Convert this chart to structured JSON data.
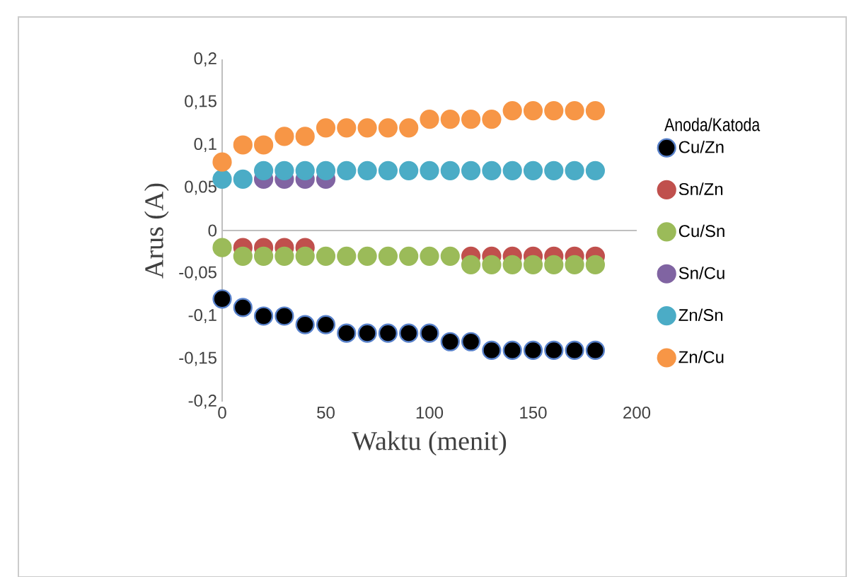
{
  "chart_data": {
    "type": "scatter",
    "xlabel": "Waktu (menit)",
    "ylabel": "Arus (A)",
    "legend_title": "Anoda/Katoda",
    "legend": "right",
    "marker": "circle",
    "x": [
      0,
      10,
      20,
      30,
      40,
      50,
      60,
      70,
      80,
      90,
      100,
      110,
      120,
      130,
      140,
      150,
      160,
      170,
      180
    ],
    "xlim": [
      0,
      200
    ],
    "xticks": [
      0,
      50,
      100,
      150,
      200
    ],
    "ylim": [
      -0.2,
      0.2
    ],
    "yticks": [
      {
        "value": -0.2,
        "label": "-0,2"
      },
      {
        "value": -0.15,
        "label": "-0,15"
      },
      {
        "value": -0.1,
        "label": "-0,1"
      },
      {
        "value": -0.05,
        "label": "-0,05"
      },
      {
        "value": 0,
        "label": "0"
      },
      {
        "value": 0.05,
        "label": "0,05"
      },
      {
        "value": 0.1,
        "label": "0,1"
      },
      {
        "value": 0.15,
        "label": "0,15"
      },
      {
        "value": 0.2,
        "label": "0,2"
      }
    ],
    "series": [
      {
        "name": "Cu/Zn",
        "color": "#000000",
        "values": [
          -0.08,
          -0.09,
          -0.1,
          -0.1,
          -0.11,
          -0.11,
          -0.12,
          -0.12,
          -0.12,
          -0.12,
          -0.12,
          -0.13,
          -0.13,
          -0.14,
          -0.14,
          -0.14,
          -0.14,
          -0.14,
          -0.14
        ]
      },
      {
        "name": "Sn/Zn",
        "color": "#c0504d",
        "values": [
          null,
          -0.02,
          -0.02,
          -0.02,
          -0.02,
          null,
          null,
          null,
          null,
          null,
          null,
          null,
          -0.03,
          -0.03,
          -0.03,
          -0.03,
          -0.03,
          -0.03,
          -0.03
        ]
      },
      {
        "name": "Cu/Sn",
        "color": "#9bbb59",
        "values": [
          -0.02,
          -0.03,
          -0.03,
          -0.03,
          -0.03,
          -0.03,
          -0.03,
          -0.03,
          -0.03,
          -0.03,
          -0.03,
          -0.03,
          -0.04,
          -0.04,
          -0.04,
          -0.04,
          -0.04,
          -0.04,
          -0.04
        ]
      },
      {
        "name": "Sn/Cu",
        "color": "#8064a2",
        "values": [
          null,
          null,
          0.06,
          0.06,
          0.06,
          0.06,
          null,
          null,
          null,
          null,
          null,
          null,
          null,
          null,
          null,
          null,
          null,
          null,
          null
        ]
      },
      {
        "name": "Zn/Sn",
        "color": "#4bacc6",
        "values": [
          0.06,
          0.06,
          0.07,
          0.07,
          0.07,
          0.07,
          0.07,
          0.07,
          0.07,
          0.07,
          0.07,
          0.07,
          0.07,
          0.07,
          0.07,
          0.07,
          0.07,
          0.07,
          0.07
        ]
      },
      {
        "name": "Zn/Cu",
        "color": "#f79646",
        "values": [
          0.08,
          0.1,
          0.1,
          0.11,
          0.11,
          0.12,
          0.12,
          0.12,
          0.12,
          0.12,
          0.13,
          0.13,
          0.13,
          0.13,
          0.14,
          0.14,
          0.14,
          0.14,
          0.14
        ]
      }
    ]
  }
}
